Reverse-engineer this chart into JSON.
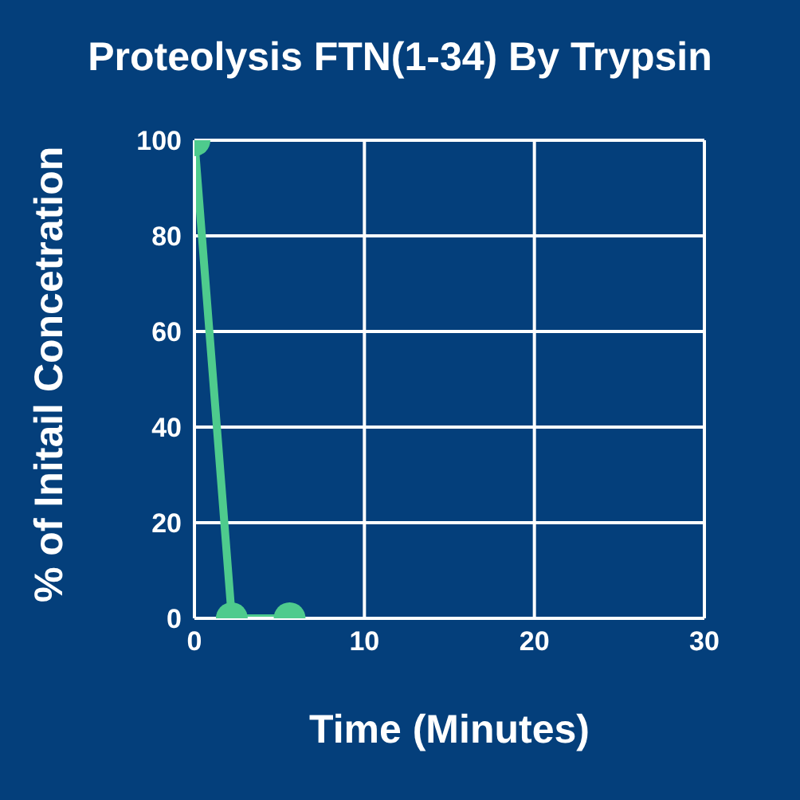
{
  "chart_data": {
    "type": "line",
    "title": "Proteolysis FTN(1-34) By Trypsin",
    "xlabel": "Time (Minutes)",
    "ylabel": "% of Initail Concetration",
    "x": [
      0,
      2.2,
      5.6
    ],
    "series": [
      {
        "color": "#4ecb8d",
        "values": [
          100,
          0,
          0
        ]
      }
    ],
    "xlim": [
      0,
      30
    ],
    "xticks": [
      0,
      10,
      20,
      30
    ],
    "ylim": [
      0,
      100
    ],
    "yticks": [
      0,
      20,
      40,
      60,
      80,
      100
    ],
    "grid": true,
    "marker": "circle",
    "line_style": "solid",
    "legend": false
  }
}
